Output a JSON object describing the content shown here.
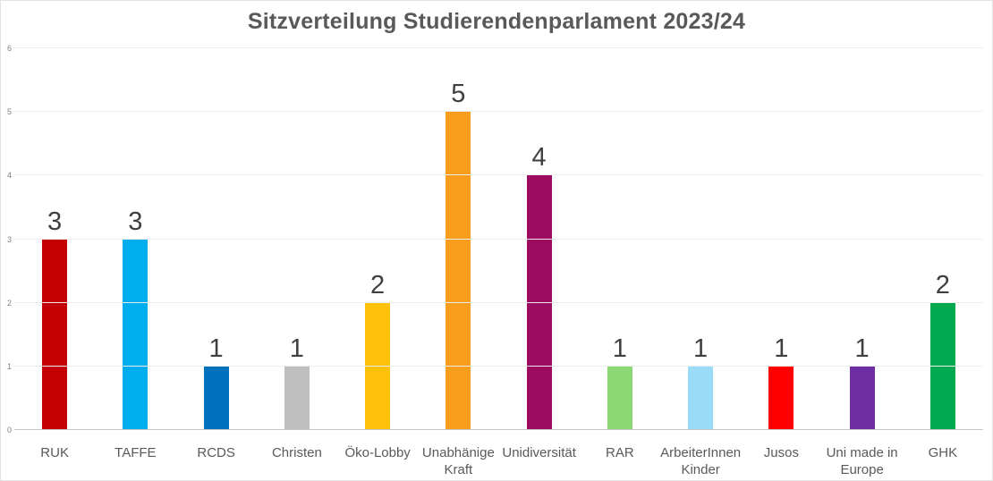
{
  "title": "Sitzverteilung Studierendenparlament 2023/24",
  "chart_data": {
    "type": "bar",
    "title": "Sitzverteilung Studierendenparlament 2023/24",
    "xlabel": "",
    "ylabel": "",
    "ylim": [
      0,
      6
    ],
    "yticks": [
      0,
      1,
      2,
      3,
      4,
      5,
      6
    ],
    "grid": true,
    "legend": false,
    "categories": [
      "RUK",
      "TAFFE",
      "RCDS",
      "Christen",
      "Öko-Lobby",
      "Unabhänige Kraft",
      "Unidiversität",
      "RAR",
      "ArbeiterInnen Kinder",
      "Jusos",
      "Uni made in Europe",
      "GHK"
    ],
    "values": [
      3,
      3,
      1,
      1,
      2,
      5,
      4,
      1,
      1,
      1,
      1,
      2
    ],
    "colors": [
      "#c40000",
      "#00aeee",
      "#0071bd",
      "#bfbfbf",
      "#ffc20a",
      "#f99d1d",
      "#9c0d62",
      "#8cd973",
      "#9adcf8",
      "#fe0000",
      "#6e2fa5",
      "#00a94f"
    ],
    "value_labels_shown": true
  },
  "style_colors": {
    "background": "#ffffff",
    "border": "#e3e3e3",
    "title_text": "#595959",
    "value_label_text": "#3f3f3f",
    "category_label_text": "#595959",
    "y_tick_text": "#7f7f7f",
    "gridline": "#ececec",
    "axis_line": "#c6c6c6"
  }
}
